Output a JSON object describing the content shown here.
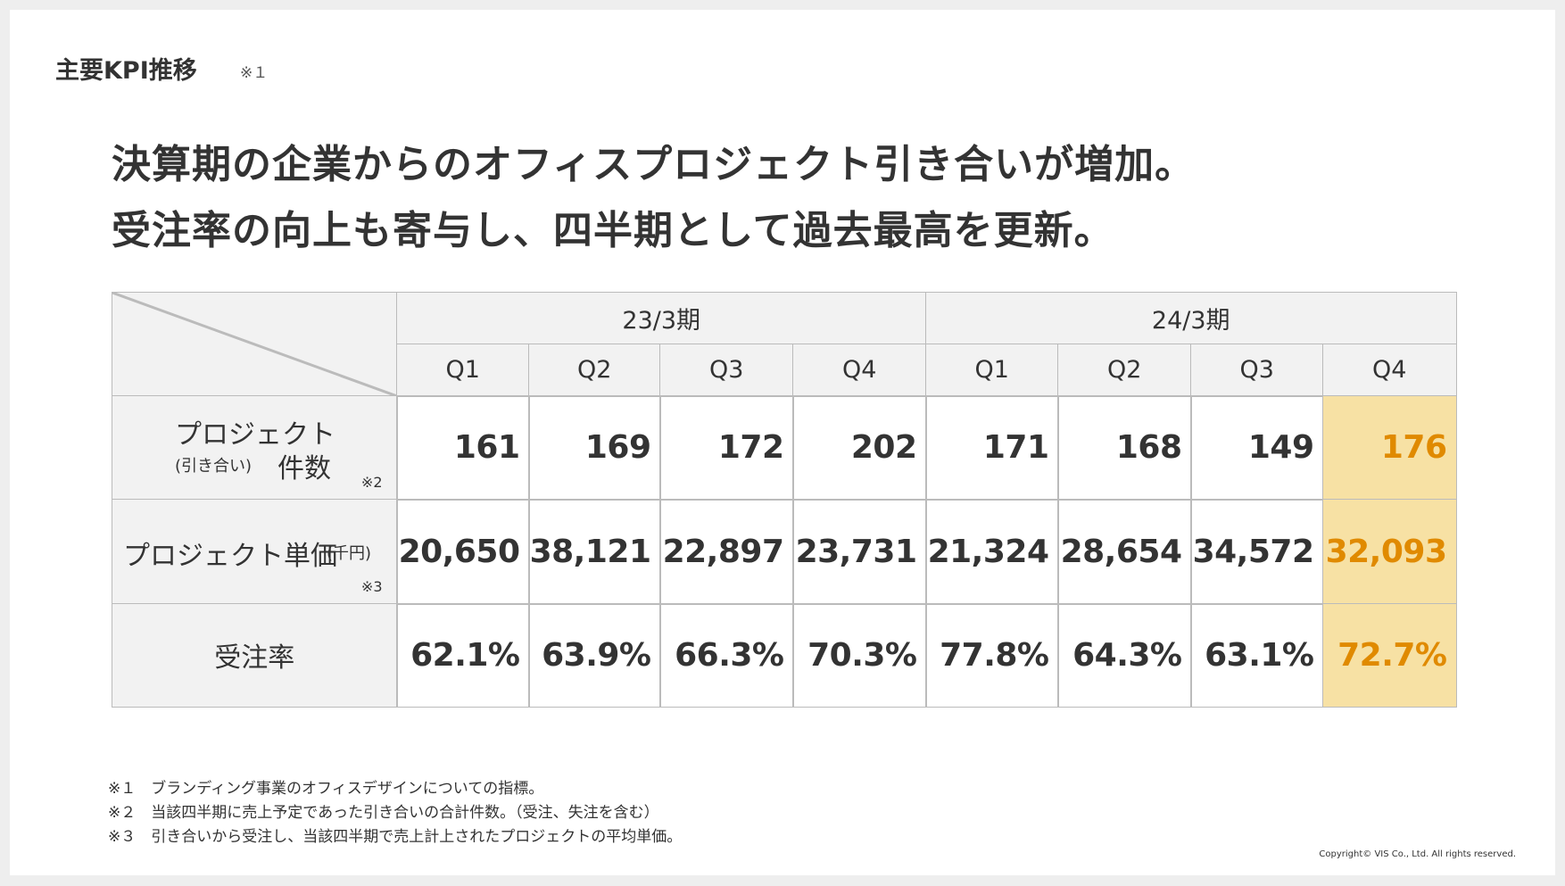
{
  "header": {
    "title": "主要KPI推移",
    "title_note": "※１"
  },
  "headline": [
    "決算期の企業からのオフィスプロジェクト引き合いが増加。",
    "受注率の向上も寄与し、四半期として過去最高を更新。"
  ],
  "table": {
    "periods": [
      "23/3期",
      "24/3期"
    ],
    "quarters": [
      "Q1",
      "Q2",
      "Q3",
      "Q4",
      "Q1",
      "Q2",
      "Q3",
      "Q4"
    ],
    "rows": [
      {
        "label": "プロジェクト",
        "sublabel": "(引き合い)",
        "label2": "件数",
        "note": "※2",
        "values": [
          "161",
          "169",
          "172",
          "202",
          "171",
          "168",
          "149",
          "176"
        ]
      },
      {
        "label": "プロジェクト単価",
        "sublabel": "(千円)",
        "note": "※3",
        "values": [
          "20,650",
          "38,121",
          "22,897",
          "23,731",
          "21,324",
          "28,654",
          "34,572",
          "32,093"
        ]
      },
      {
        "label": "受注率",
        "values": [
          "62.1%",
          "63.9%",
          "66.3%",
          "70.3%",
          "77.8%",
          "64.3%",
          "63.1%",
          "72.7%"
        ]
      }
    ]
  },
  "footnotes": [
    "※１　ブランディング事業のオフィスデザインについての指標。",
    "※２　当該四半期に売上予定であった引き合いの合計件数。（受注、失注を含む）",
    "※３　引き合いから受注し、当該四半期で売上計上されたプロジェクトの平均単価。"
  ],
  "copyright": "Copyright© VIS Co., Ltd. All rights reserved."
}
